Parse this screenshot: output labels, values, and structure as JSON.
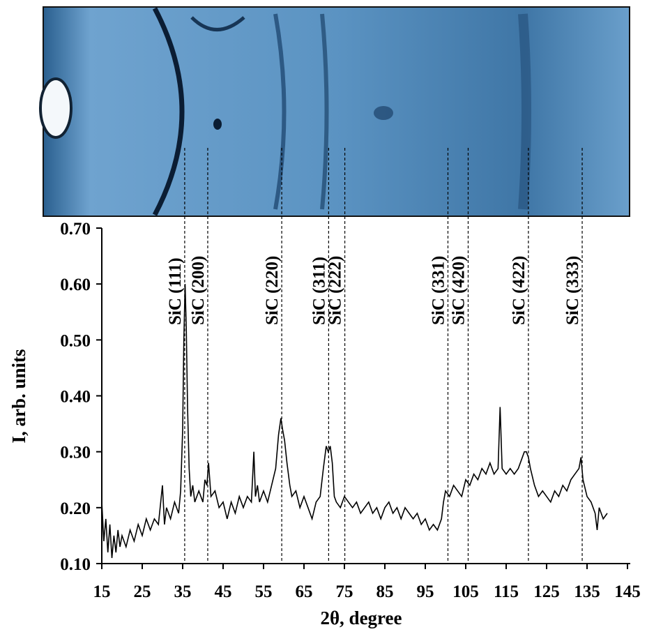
{
  "chart_data": {
    "type": "line",
    "xlabel": "2θ, degree",
    "ylabel": "I, arb. units",
    "color": "#000000",
    "xlim": [
      15,
      145
    ],
    "ylim": [
      0.1,
      0.7
    ],
    "xticks": [
      15,
      25,
      35,
      45,
      55,
      65,
      75,
      85,
      95,
      105,
      115,
      125,
      135,
      145
    ],
    "yticks": [
      {
        "value": 0.1,
        "label": "0.10"
      },
      {
        "value": 0.2,
        "label": "0.20"
      },
      {
        "value": 0.3,
        "label": "0.30"
      },
      {
        "value": 0.4,
        "label": "0.40"
      },
      {
        "value": 0.5,
        "label": "0.50"
      },
      {
        "value": 0.6,
        "label": "0.60"
      },
      {
        "value": 0.7,
        "label": "0.70"
      }
    ],
    "peaks": [
      {
        "label": "SiC (111)",
        "x": 35.5
      },
      {
        "label": "SiC (200)",
        "x": 41.2
      },
      {
        "label": "SiC (220)",
        "x": 59.5
      },
      {
        "label": "SiC (311)",
        "x": 71.1
      },
      {
        "label": "SiC (222)",
        "x": 75.1
      },
      {
        "label": "SiC (331)",
        "x": 100.6
      },
      {
        "label": "SiC (420)",
        "x": 105.6
      },
      {
        "label": "SiC (422)",
        "x": 120.5
      },
      {
        "label": "SiC (333)",
        "x": 133.8
      }
    ],
    "x": [
      15,
      15.5,
      16,
      16.5,
      17,
      17.5,
      18,
      18.5,
      19,
      19.5,
      20,
      21,
      22,
      23,
      24,
      25,
      26,
      27,
      28,
      29,
      30,
      30.5,
      31,
      32,
      33,
      34,
      34.5,
      35,
      35.3,
      35.6,
      35.9,
      36.2,
      36.6,
      37,
      37.5,
      38,
      39,
      40,
      40.5,
      41,
      41.4,
      42,
      43,
      44,
      45,
      46,
      47,
      48,
      49,
      50,
      51,
      52,
      52.6,
      53,
      53.5,
      54,
      55,
      56,
      57,
      58,
      58.7,
      59.3,
      59.7,
      60.2,
      60.8,
      61.5,
      62,
      63,
      64,
      65,
      66,
      67,
      68,
      69,
      69.8,
      70.5,
      71,
      71.5,
      72,
      72.5,
      73,
      74,
      75,
      76,
      77,
      78,
      79,
      80,
      81,
      82,
      83,
      84,
      85,
      86,
      87,
      88,
      89,
      90,
      91,
      92,
      93,
      94,
      95,
      96,
      97,
      98,
      99,
      99.5,
      100,
      101,
      102,
      103,
      104,
      105,
      106,
      107,
      108,
      109,
      110,
      111,
      112,
      113,
      113.5,
      114,
      115,
      116,
      117,
      118,
      119,
      119.5,
      120,
      120.5,
      121,
      122,
      123,
      124,
      125,
      126,
      127,
      128,
      129,
      130,
      131,
      132,
      133,
      133.5,
      134,
      135,
      136,
      137,
      137.5,
      138,
      139,
      140
    ],
    "values": [
      0.21,
      0.14,
      0.18,
      0.12,
      0.17,
      0.11,
      0.15,
      0.12,
      0.16,
      0.13,
      0.15,
      0.13,
      0.16,
      0.14,
      0.17,
      0.15,
      0.18,
      0.16,
      0.18,
      0.17,
      0.24,
      0.17,
      0.2,
      0.18,
      0.21,
      0.19,
      0.23,
      0.34,
      0.5,
      0.6,
      0.52,
      0.38,
      0.27,
      0.22,
      0.24,
      0.21,
      0.23,
      0.21,
      0.25,
      0.24,
      0.28,
      0.22,
      0.23,
      0.2,
      0.21,
      0.18,
      0.21,
      0.19,
      0.22,
      0.2,
      0.22,
      0.21,
      0.3,
      0.22,
      0.24,
      0.21,
      0.23,
      0.21,
      0.24,
      0.27,
      0.33,
      0.36,
      0.34,
      0.32,
      0.28,
      0.24,
      0.22,
      0.23,
      0.2,
      0.22,
      0.2,
      0.18,
      0.21,
      0.22,
      0.27,
      0.31,
      0.3,
      0.31,
      0.28,
      0.22,
      0.21,
      0.2,
      0.22,
      0.21,
      0.2,
      0.21,
      0.19,
      0.2,
      0.21,
      0.19,
      0.2,
      0.18,
      0.2,
      0.21,
      0.19,
      0.2,
      0.18,
      0.2,
      0.19,
      0.18,
      0.19,
      0.17,
      0.18,
      0.16,
      0.17,
      0.16,
      0.18,
      0.21,
      0.23,
      0.22,
      0.24,
      0.23,
      0.22,
      0.25,
      0.24,
      0.26,
      0.25,
      0.27,
      0.26,
      0.28,
      0.26,
      0.27,
      0.38,
      0.27,
      0.26,
      0.27,
      0.26,
      0.27,
      0.29,
      0.3,
      0.3,
      0.29,
      0.27,
      0.24,
      0.22,
      0.23,
      0.22,
      0.21,
      0.23,
      0.22,
      0.24,
      0.23,
      0.25,
      0.26,
      0.27,
      0.29,
      0.25,
      0.22,
      0.21,
      0.19,
      0.16,
      0.2,
      0.18,
      0.19
    ]
  }
}
